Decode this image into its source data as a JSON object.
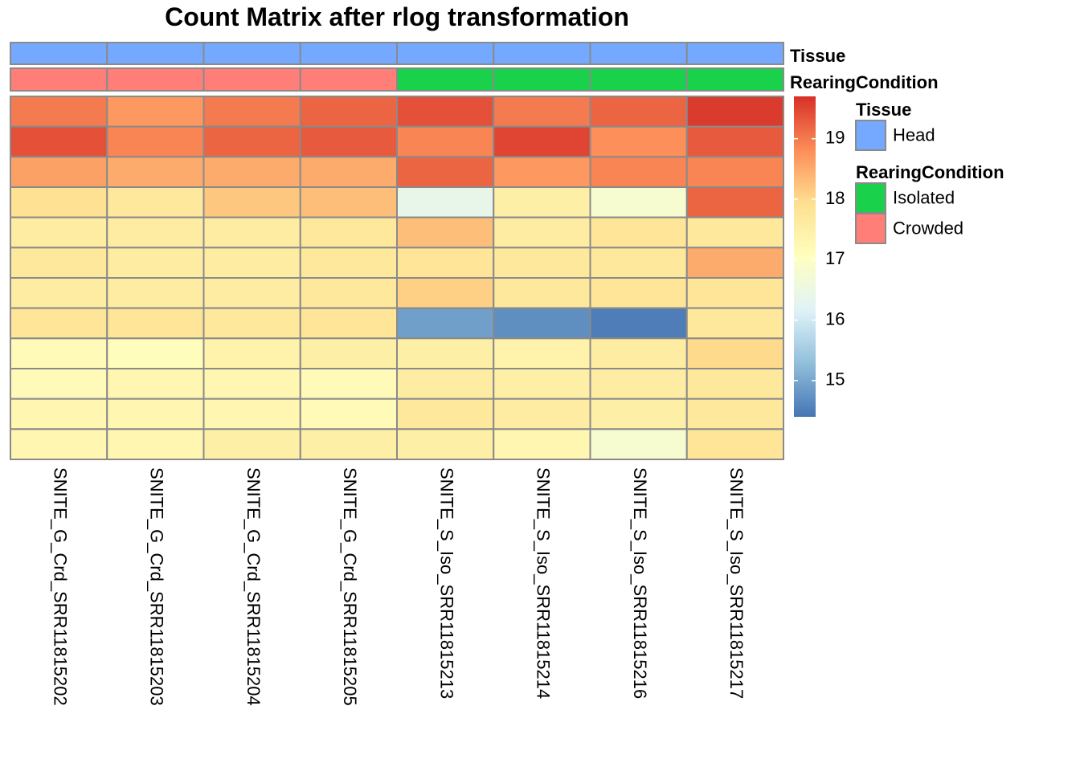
{
  "chart_data": {
    "type": "heatmap",
    "title": "Count Matrix after rlog transformation",
    "columns": [
      "SNITE_G_Crd_SRR11815202",
      "SNITE_G_Crd_SRR11815203",
      "SNITE_G_Crd_SRR11815204",
      "SNITE_G_Crd_SRR11815205",
      "SNITE_S_Iso_SRR11815213",
      "SNITE_S_Iso_SRR11815214",
      "SNITE_S_Iso_SRR11815216",
      "SNITE_S_Iso_SRR11815217"
    ],
    "values": [
      [
        19.0,
        18.7,
        19.0,
        19.2,
        19.4,
        19.0,
        19.2,
        19.6
      ],
      [
        19.4,
        18.9,
        19.2,
        19.3,
        18.9,
        19.5,
        18.8,
        19.3
      ],
      [
        18.6,
        18.5,
        18.5,
        18.5,
        19.2,
        18.7,
        18.9,
        18.9
      ],
      [
        17.9,
        17.7,
        18.2,
        18.3,
        16.4,
        17.5,
        16.8,
        19.2
      ],
      [
        17.6,
        17.6,
        17.6,
        17.7,
        18.3,
        17.6,
        17.8,
        17.7
      ],
      [
        17.7,
        17.6,
        17.6,
        17.7,
        17.8,
        17.7,
        17.7,
        18.5
      ],
      [
        17.6,
        17.6,
        17.6,
        17.7,
        18.1,
        17.7,
        17.8,
        17.8
      ],
      [
        17.8,
        17.8,
        17.7,
        17.8,
        14.9,
        14.7,
        14.5,
        17.7
      ],
      [
        17.2,
        17.1,
        17.4,
        17.5,
        17.5,
        17.4,
        17.6,
        18.0
      ],
      [
        17.2,
        17.3,
        17.3,
        17.2,
        17.6,
        17.5,
        17.6,
        17.7
      ],
      [
        17.3,
        17.3,
        17.3,
        17.2,
        17.7,
        17.6,
        17.5,
        17.7
      ],
      [
        17.3,
        17.3,
        17.5,
        17.5,
        17.5,
        17.3,
        16.8,
        17.8
      ]
    ],
    "color_scale": {
      "min": 14.4,
      "max": 19.7,
      "ticks": [
        15,
        16,
        17,
        18,
        19
      ],
      "palette": [
        "#4575b4",
        "#91bfdb",
        "#e0f3f8",
        "#ffffbf",
        "#fee090",
        "#fc8d59",
        "#d73027"
      ]
    },
    "annotations": [
      {
        "name": "Tissue",
        "values": [
          "Head",
          "Head",
          "Head",
          "Head",
          "Head",
          "Head",
          "Head",
          "Head"
        ]
      },
      {
        "name": "RearingCondition",
        "values": [
          "Crowded",
          "Crowded",
          "Crowded",
          "Crowded",
          "Isolated",
          "Isolated",
          "Isolated",
          "Isolated"
        ]
      }
    ],
    "legends": [
      {
        "title": "Tissue",
        "entries": [
          {
            "label": "Head",
            "color": "#74a9ff"
          }
        ]
      },
      {
        "title": "RearingCondition",
        "entries": [
          {
            "label": "Isolated",
            "color": "#1ad14c"
          },
          {
            "label": "Crowded",
            "color": "#ff7f78"
          }
        ]
      }
    ]
  },
  "colors": {
    "grid_border": "#8a8a8a",
    "Head": "#74a9ff",
    "Isolated": "#1ad14c",
    "Crowded": "#ff7f78"
  }
}
